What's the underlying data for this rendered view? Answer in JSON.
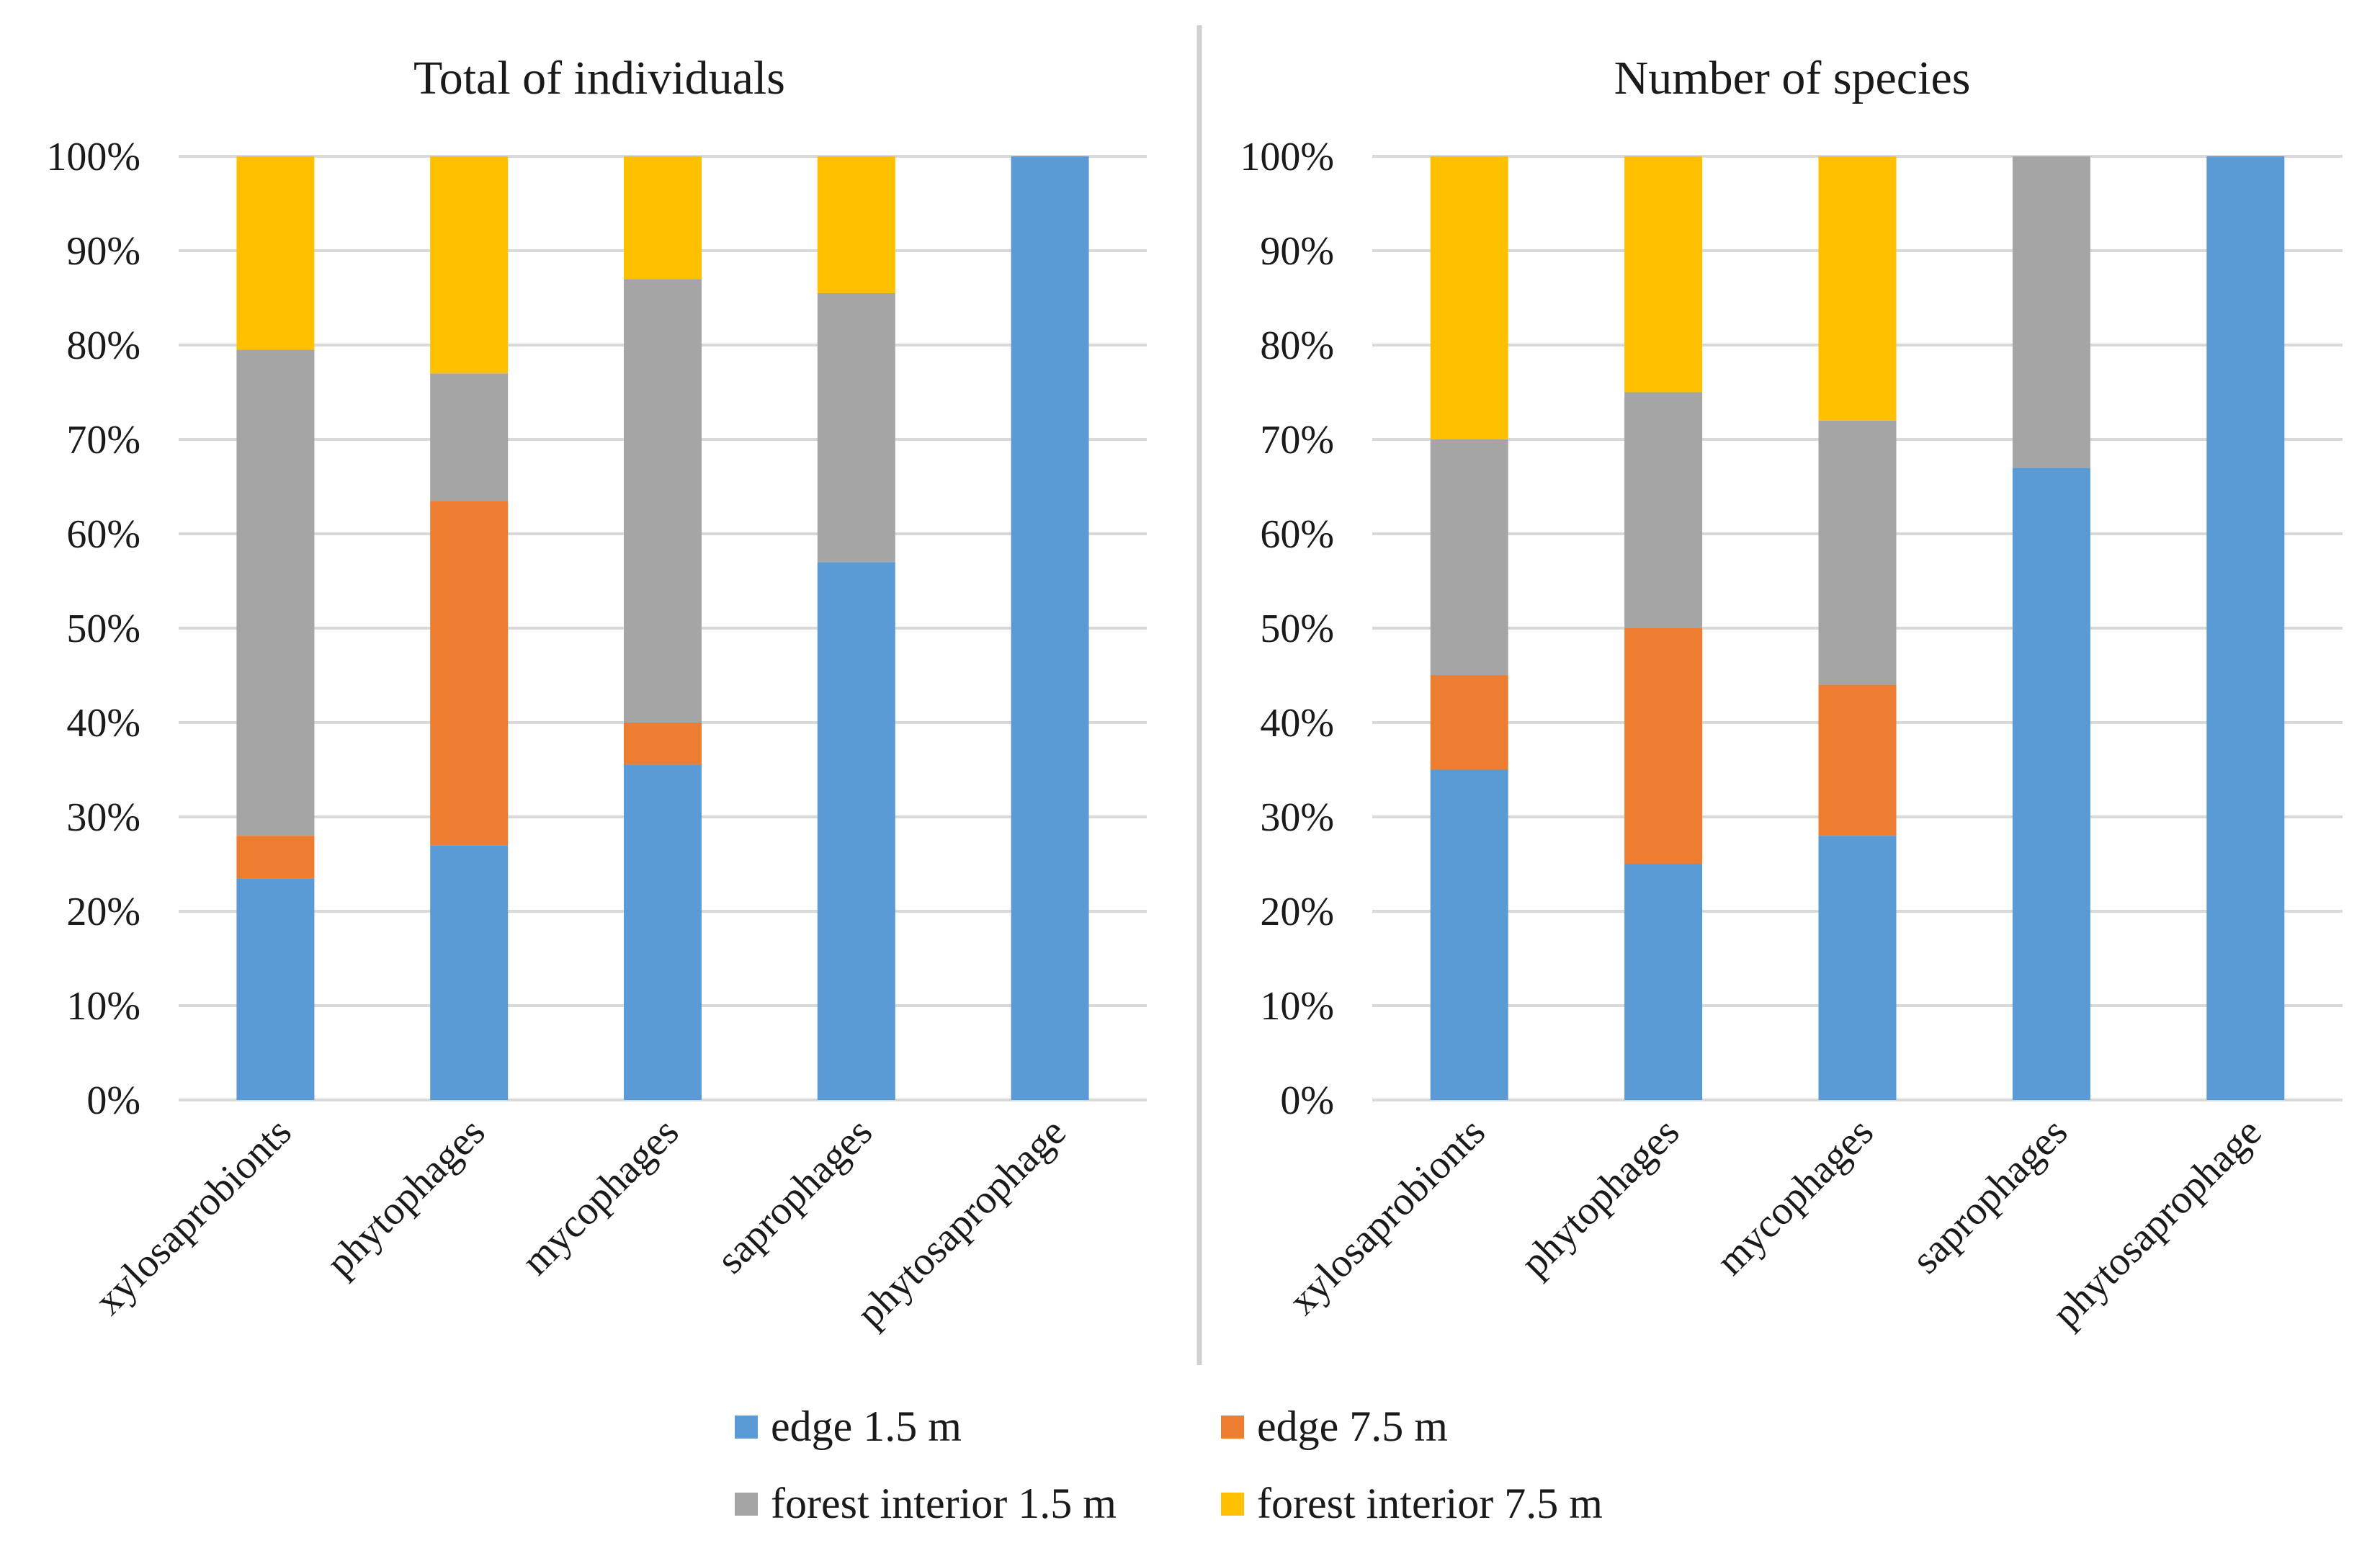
{
  "chart_data": [
    {
      "type": "bar",
      "stacked": true,
      "percent": true,
      "title": "Total of individuals",
      "categories": [
        "xylosaprobionts",
        "phytophages",
        "mycophages",
        "saprophages",
        "phytosaprophage"
      ],
      "series": [
        {
          "name": "edge 1.5 m",
          "values": [
            23.5,
            27,
            35.5,
            57,
            100
          ]
        },
        {
          "name": "edge 7.5 m",
          "values": [
            4.5,
            36.5,
            4.5,
            0,
            0
          ]
        },
        {
          "name": "forest interior 1.5 m",
          "values": [
            51.5,
            13.5,
            47,
            28.5,
            0
          ]
        },
        {
          "name": "forest interior 7.5 m",
          "values": [
            20.5,
            23,
            13,
            14.5,
            0
          ]
        }
      ],
      "ylim": [
        0,
        100
      ],
      "yticks": [
        "0%",
        "10%",
        "20%",
        "30%",
        "40%",
        "50%",
        "60%",
        "70%",
        "80%",
        "90%",
        "100%"
      ],
      "grid": true
    },
    {
      "type": "bar",
      "stacked": true,
      "percent": true,
      "title": "Number of species",
      "categories": [
        "xylosaprobionts",
        "phytophages",
        "mycophages",
        "saprophages",
        "phytosaprophage"
      ],
      "series": [
        {
          "name": "edge 1.5 m",
          "values": [
            35,
            25,
            28,
            67,
            100
          ]
        },
        {
          "name": "edge 7.5 m",
          "values": [
            10,
            25,
            16,
            0,
            0
          ]
        },
        {
          "name": "forest interior 1.5 m",
          "values": [
            25,
            25,
            28,
            33,
            0
          ]
        },
        {
          "name": "forest interior 7.5 m",
          "values": [
            30,
            25,
            28,
            0,
            0
          ]
        }
      ],
      "ylim": [
        0,
        100
      ],
      "yticks": [
        "0%",
        "10%",
        "20%",
        "30%",
        "40%",
        "50%",
        "60%",
        "70%",
        "80%",
        "90%",
        "100%"
      ],
      "grid": true
    }
  ],
  "legend": {
    "placement": "bottom-center",
    "items": [
      {
        "label": "edge 1.5 m",
        "color": "#5B9BD5"
      },
      {
        "label": "edge 7.5 m",
        "color": "#ED7D31"
      },
      {
        "label": "forest interior 1.5 m",
        "color": "#A5A5A5"
      },
      {
        "label": "forest interior 7.5 m",
        "color": "#FFC000"
      }
    ]
  },
  "colors": {
    "gridline": "#D9D9D9",
    "divider": "#D0D0D0"
  }
}
